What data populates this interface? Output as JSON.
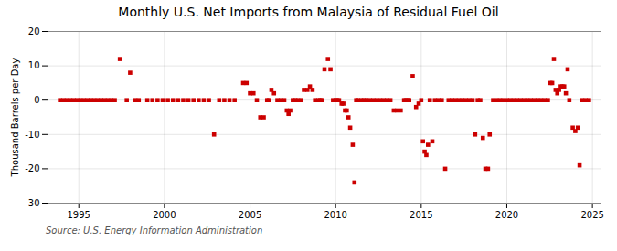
{
  "chart_data": {
    "type": "scatter",
    "title": "Monthly U.S. Net Imports from Malaysia of Residual Fuel Oil",
    "ylabel": "Thousand Barrels per Day",
    "annotations": [
      "Source: U.S. Energy Information Administration"
    ],
    "color": "#cc0000",
    "marker": "square",
    "grid": true,
    "xlim": [
      1993.2,
      2025.5
    ],
    "xticks": [
      1995,
      2000,
      2005,
      2010,
      2015,
      2020,
      2025
    ],
    "ylim": [
      -30,
      20
    ],
    "yticks": [
      -30,
      -20,
      -10,
      0,
      10,
      20
    ],
    "x": [
      1993.9,
      1994.1,
      1994.3,
      1994.5,
      1994.7,
      1994.9,
      1995.1,
      1995.3,
      1995.5,
      1995.7,
      1995.9,
      1996.1,
      1996.3,
      1996.5,
      1996.7,
      1996.9,
      1997.1,
      1997.4,
      1997.8,
      1998.0,
      1998.3,
      1998.5,
      1999.0,
      1999.3,
      1999.6,
      1999.9,
      2000.2,
      2000.5,
      2000.8,
      2001.1,
      2001.4,
      2001.7,
      2002.0,
      2002.3,
      2002.6,
      2002.9,
      2003.2,
      2003.5,
      2003.8,
      2004.1,
      2004.6,
      2004.8,
      2005.0,
      2005.2,
      2005.4,
      2005.6,
      2005.8,
      2006.0,
      2006.1,
      2006.25,
      2006.4,
      2006.6,
      2006.8,
      2007.0,
      2007.15,
      2007.25,
      2007.35,
      2007.5,
      2007.65,
      2007.8,
      2008.0,
      2008.15,
      2008.35,
      2008.5,
      2008.65,
      2008.8,
      2009.0,
      2009.1,
      2009.2,
      2009.35,
      2009.55,
      2009.7,
      2009.85,
      2010.0,
      2010.1,
      2010.2,
      2010.35,
      2010.45,
      2010.55,
      2010.65,
      2010.75,
      2010.85,
      2011.0,
      2011.1,
      2011.2,
      2011.3,
      2011.5,
      2011.65,
      2011.8,
      2012.0,
      2012.2,
      2012.4,
      2012.6,
      2012.8,
      2013.0,
      2013.2,
      2013.4,
      2013.6,
      2013.8,
      2014.0,
      2014.1,
      2014.2,
      2014.3,
      2014.5,
      2014.7,
      2014.85,
      2015.0,
      2015.1,
      2015.2,
      2015.3,
      2015.4,
      2015.5,
      2015.65,
      2015.8,
      2016.0,
      2016.2,
      2016.4,
      2016.6,
      2016.8,
      2017.0,
      2017.2,
      2017.4,
      2017.6,
      2017.8,
      2018.0,
      2018.15,
      2018.3,
      2018.45,
      2018.6,
      2018.75,
      2018.9,
      2019.0,
      2019.2,
      2019.4,
      2019.6,
      2019.8,
      2020.0,
      2020.2,
      2020.4,
      2020.6,
      2020.8,
      2021.0,
      2021.2,
      2021.4,
      2021.6,
      2021.8,
      2022.0,
      2022.2,
      2022.4,
      2022.55,
      2022.65,
      2022.75,
      2022.85,
      2022.95,
      2023.05,
      2023.15,
      2023.25,
      2023.35,
      2023.45,
      2023.55,
      2023.65,
      2023.85,
      2024.0,
      2024.15,
      2024.25,
      2024.4,
      2024.6,
      2024.8
    ],
    "values": [
      0,
      0,
      0,
      0,
      0,
      0,
      0,
      0,
      0,
      0,
      0,
      0,
      0,
      0,
      0,
      0,
      0,
      12,
      0,
      8,
      0,
      0,
      0,
      0,
      0,
      0,
      0,
      0,
      0,
      0,
      0,
      0,
      0,
      0,
      0,
      -10,
      0,
      0,
      0,
      0,
      5,
      5,
      2,
      2,
      0,
      -5,
      -5,
      0,
      0,
      3,
      2,
      0,
      0,
      0,
      -3,
      -4,
      -3,
      0,
      0,
      0,
      0,
      3,
      3,
      4,
      3,
      0,
      0,
      0,
      0,
      9,
      12,
      9,
      0,
      0,
      0,
      0,
      -1,
      -1,
      -3,
      -3,
      -5,
      -8,
      -13,
      -24,
      0,
      0,
      0,
      0,
      0,
      0,
      0,
      0,
      0,
      0,
      0,
      0,
      -3,
      -3,
      -3,
      0,
      0,
      0,
      0,
      7,
      -2,
      -1,
      0,
      -12,
      -15,
      -16,
      -13,
      0,
      -12,
      0,
      0,
      0,
      -20,
      0,
      0,
      0,
      0,
      0,
      0,
      0,
      0,
      -10,
      0,
      0,
      -11,
      -20,
      -20,
      -10,
      0,
      0,
      0,
      0,
      0,
      0,
      0,
      0,
      0,
      0,
      0,
      0,
      0,
      0,
      0,
      0,
      0,
      5,
      5,
      12,
      3,
      2,
      3,
      4,
      4,
      4,
      2,
      9,
      0,
      -8,
      -9,
      -8,
      -19,
      0,
      0,
      0
    ]
  }
}
